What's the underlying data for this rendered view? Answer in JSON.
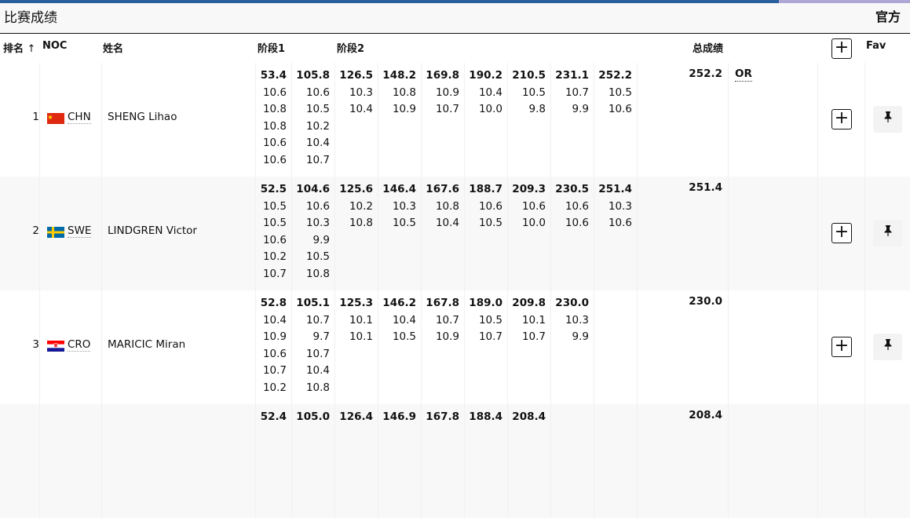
{
  "header": {
    "title": "比赛成绩",
    "status": "官方"
  },
  "columns": {
    "rank": "排名",
    "sort_icon": "↑",
    "noc": "NOC",
    "name": "姓名",
    "stage1": "阶段1",
    "stage2": "阶段2",
    "total": "总成绩",
    "fav": "Fav",
    "add": "+"
  },
  "colors": {
    "top_bar": "#2a5f9e",
    "top_bar_accent": "#b0a8d4"
  },
  "rows": [
    {
      "rank": "1",
      "noc": "CHN",
      "flag": "china",
      "name": "SHENG Lihao",
      "total": "252.2",
      "record": "OR",
      "stages": [
        [
          "53.4",
          "10.6",
          "10.8",
          "10.8",
          "10.6",
          "10.6"
        ],
        [
          "105.8",
          "10.6",
          "10.5",
          "10.2",
          "10.4",
          "10.7"
        ],
        [
          "126.5",
          "10.3",
          "10.4"
        ],
        [
          "148.2",
          "10.8",
          "10.9"
        ],
        [
          "169.8",
          "10.9",
          "10.7"
        ],
        [
          "190.2",
          "10.4",
          "10.0"
        ],
        [
          "210.5",
          "10.5",
          "9.8"
        ],
        [
          "231.1",
          "10.7",
          "9.9"
        ],
        [
          "252.2",
          "10.5",
          "10.6"
        ]
      ]
    },
    {
      "rank": "2",
      "noc": "SWE",
      "flag": "sweden",
      "name": "LINDGREN Victor",
      "total": "251.4",
      "record": "",
      "stages": [
        [
          "52.5",
          "10.5",
          "10.5",
          "10.6",
          "10.2",
          "10.7"
        ],
        [
          "104.6",
          "10.6",
          "10.3",
          "9.9",
          "10.5",
          "10.8"
        ],
        [
          "125.6",
          "10.2",
          "10.8"
        ],
        [
          "146.4",
          "10.3",
          "10.5"
        ],
        [
          "167.6",
          "10.8",
          "10.4"
        ],
        [
          "188.7",
          "10.6",
          "10.5"
        ],
        [
          "209.3",
          "10.6",
          "10.0"
        ],
        [
          "230.5",
          "10.6",
          "10.6"
        ],
        [
          "251.4",
          "10.3",
          "10.6"
        ]
      ]
    },
    {
      "rank": "3",
      "noc": "CRO",
      "flag": "croatia",
      "name": "MARICIC Miran",
      "total": "230.0",
      "record": "",
      "stages": [
        [
          "52.8",
          "10.4",
          "10.9",
          "10.6",
          "10.7",
          "10.2"
        ],
        [
          "105.1",
          "10.7",
          "9.7",
          "10.7",
          "10.4",
          "10.8"
        ],
        [
          "125.3",
          "10.1",
          "10.1"
        ],
        [
          "146.2",
          "10.4",
          "10.5"
        ],
        [
          "167.8",
          "10.7",
          "10.9"
        ],
        [
          "189.0",
          "10.5",
          "10.7"
        ],
        [
          "209.8",
          "10.1",
          "10.7"
        ],
        [
          "230.0",
          "10.3",
          "9.9"
        ],
        []
      ]
    },
    {
      "rank": "",
      "noc": "",
      "flag": "",
      "name": "",
      "total": "208.4",
      "record": "",
      "stages": [
        [
          "52.4"
        ],
        [
          "105.0"
        ],
        [
          "126.4"
        ],
        [
          "146.9"
        ],
        [
          "167.8"
        ],
        [
          "188.4"
        ],
        [
          "208.4"
        ],
        [],
        []
      ]
    }
  ]
}
